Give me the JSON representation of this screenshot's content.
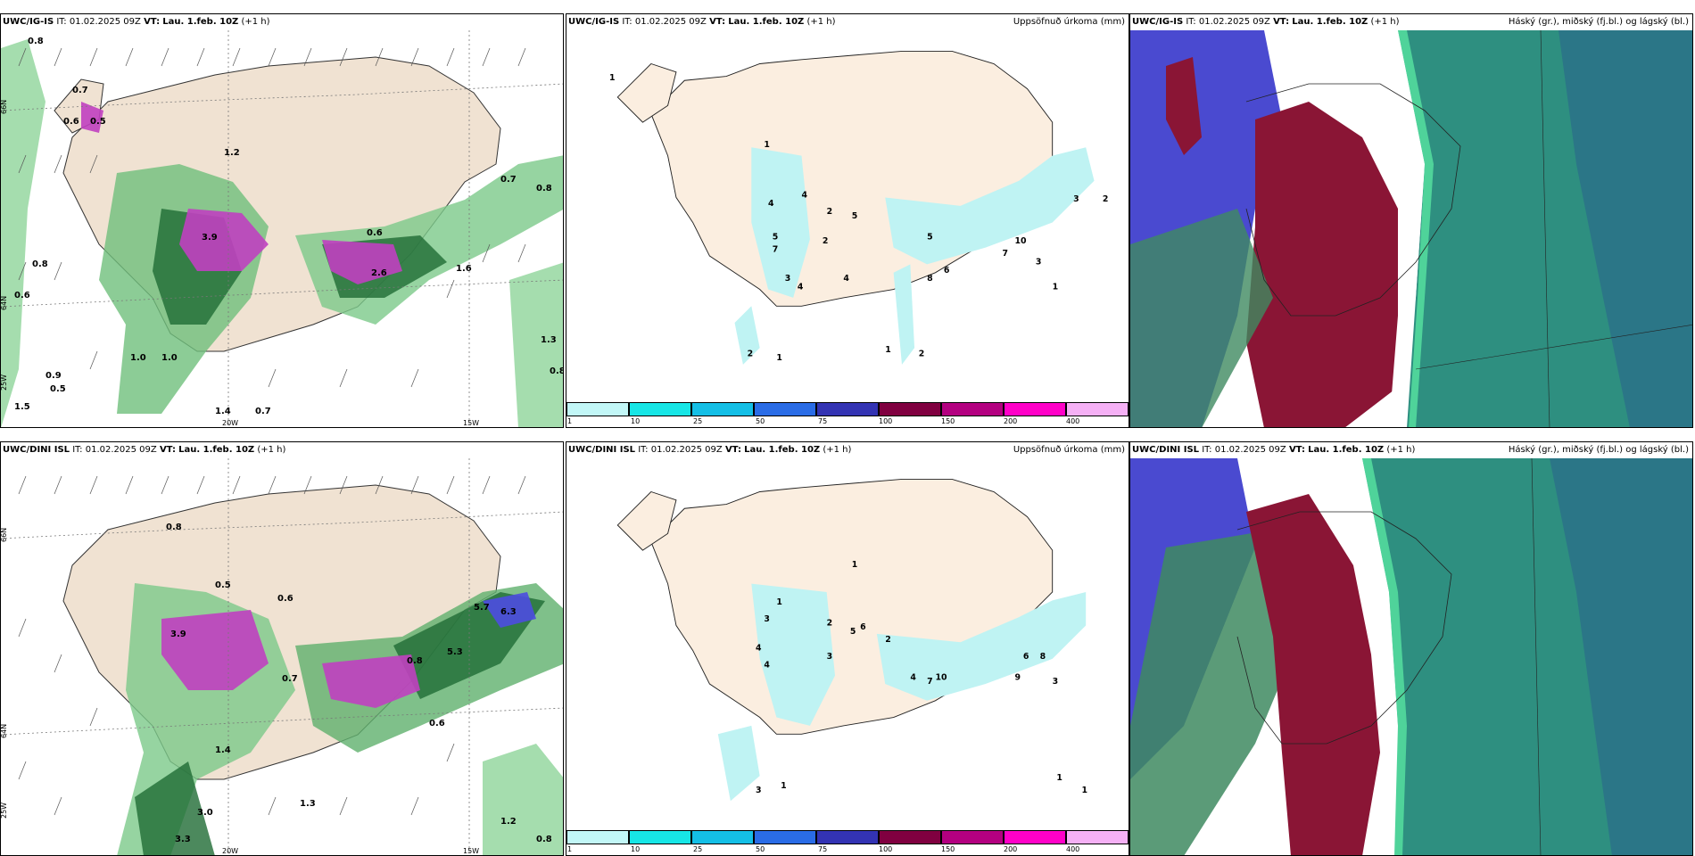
{
  "panels": [
    {
      "model": "UWC/IG-IS",
      "it": "IT: 01.02.2025 09Z",
      "vt_label": "VT:",
      "vt": "Lau. 1.feb. 10Z",
      "offset": "(+1 h)",
      "right_title": ""
    },
    {
      "model": "UWC/IG-IS",
      "it": "IT: 01.02.2025 09Z",
      "vt_label": "VT:",
      "vt": "Lau. 1.feb. 10Z",
      "offset": "(+1 h)",
      "right_title": "Uppsöfnuð úrkoma (mm)"
    },
    {
      "model": "UWC/IG-IS",
      "it": "IT: 01.02.2025 09Z",
      "vt_label": "VT:",
      "vt": "Lau. 1.feb. 10Z",
      "offset": "(+1 h)",
      "right_title": "Háský (gr.), miðský (fj.bl.) og lágský (bl.)"
    },
    {
      "model": "UWC/DINI ISL",
      "it": "IT: 01.02.2025 09Z",
      "vt_label": "VT:",
      "vt": "Lau. 1.feb. 10Z",
      "offset": "(+1 h)",
      "right_title": ""
    },
    {
      "model": "UWC/DINI ISL",
      "it": "IT: 01.02.2025 09Z",
      "vt_label": "VT:",
      "vt": "Lau. 1.feb. 10Z",
      "offset": "(+1 h)",
      "right_title": "Uppsöfnuð úrkoma (mm)"
    },
    {
      "model": "UWC/DINI ISL",
      "it": "IT: 01.02.2025 09Z",
      "vt_label": "VT:",
      "vt": "Lau. 1.feb. 10Z",
      "offset": "(+1 h)",
      "right_title": "Háský (gr.), miðský (fj.bl.) og lágský (bl.)"
    }
  ],
  "coords": {
    "lat66": "66N",
    "lat64": "64N",
    "lon25": "25W",
    "lon20": "20W",
    "lon15": "15W"
  },
  "colorbar": {
    "ticks": [
      "1",
      "10",
      "25",
      "50",
      "75",
      "100",
      "150",
      "200",
      "400"
    ],
    "colors": [
      "#c2f7f7",
      "#17e6e6",
      "#14bfe6",
      "#2a6ce6",
      "#3333b3",
      "#800040",
      "#b30080",
      "#ff00c8",
      "#f5b0f5"
    ]
  },
  "precip_values_ig": [
    "0.8",
    "0.7",
    "0.6",
    "0.5",
    "1.5",
    "1.0",
    "0.9",
    "0.5",
    "0.6",
    "0.8",
    "0.7",
    "1.6",
    "1.2",
    "1.4",
    "3.9",
    "2.6",
    "0.6",
    "1.0",
    "0.7",
    "0.8",
    "1.3",
    "0.8"
  ],
  "precip_values_dini": [
    "0.8",
    "0.5",
    "0.6",
    "3.9",
    "5.7",
    "6.3",
    "0.8",
    "5.3",
    "3.0",
    "3.3",
    "1.3",
    "1.4",
    "1.2",
    "0.8",
    "0.7",
    "0.6"
  ],
  "accum_values_ig": [
    "1",
    "1",
    "4",
    "4",
    "7",
    "5",
    "3",
    "4",
    "2",
    "5",
    "2",
    "4",
    "8",
    "6",
    "3",
    "5",
    "3",
    "2",
    "1",
    "10",
    "7",
    "1",
    "2",
    "1",
    "2"
  ],
  "accum_values_dini": [
    "1",
    "1",
    "3",
    "4",
    "2",
    "5",
    "6",
    "3",
    "2",
    "4",
    "7",
    "10",
    "9",
    "6",
    "8",
    "3",
    "1",
    "1",
    "1",
    "3",
    "4"
  ],
  "colors": {
    "land": "#f5e4d2",
    "cloud_high": "#2f8f7e",
    "cloud_mid": "#3c3ca8",
    "cloud_low": "#8a1535"
  }
}
